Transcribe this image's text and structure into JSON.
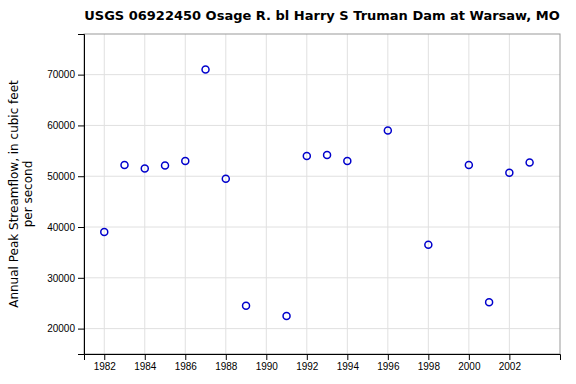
{
  "chart_data": {
    "type": "scatter",
    "title": "USGS 06922450 Osage R. bl Harry S Truman Dam at Warsaw, MO",
    "ylabel": "Annual Peak Streamflow, in cubic feet\nper second",
    "x": [
      1982,
      1983,
      1984,
      1985,
      1986,
      1987,
      1988,
      1989,
      1991,
      1992,
      1993,
      1994,
      1996,
      1998,
      2000,
      2001,
      2002,
      2003
    ],
    "values": [
      39000,
      52200,
      51500,
      52100,
      53000,
      71000,
      49500,
      24500,
      22500,
      54000,
      54200,
      53000,
      59000,
      36500,
      52200,
      25200,
      50700,
      52700
    ],
    "color": "#0000cc",
    "marker": "circle",
    "xlim": [
      1981,
      2004.5
    ],
    "ylim": [
      15000,
      78000
    ],
    "xticks": [
      1982,
      1984,
      1986,
      1988,
      1990,
      1992,
      1994,
      1996,
      1998,
      2000,
      2002
    ],
    "yticks": [
      20000,
      30000,
      40000,
      50000,
      60000,
      70000
    ],
    "grid": true
  }
}
